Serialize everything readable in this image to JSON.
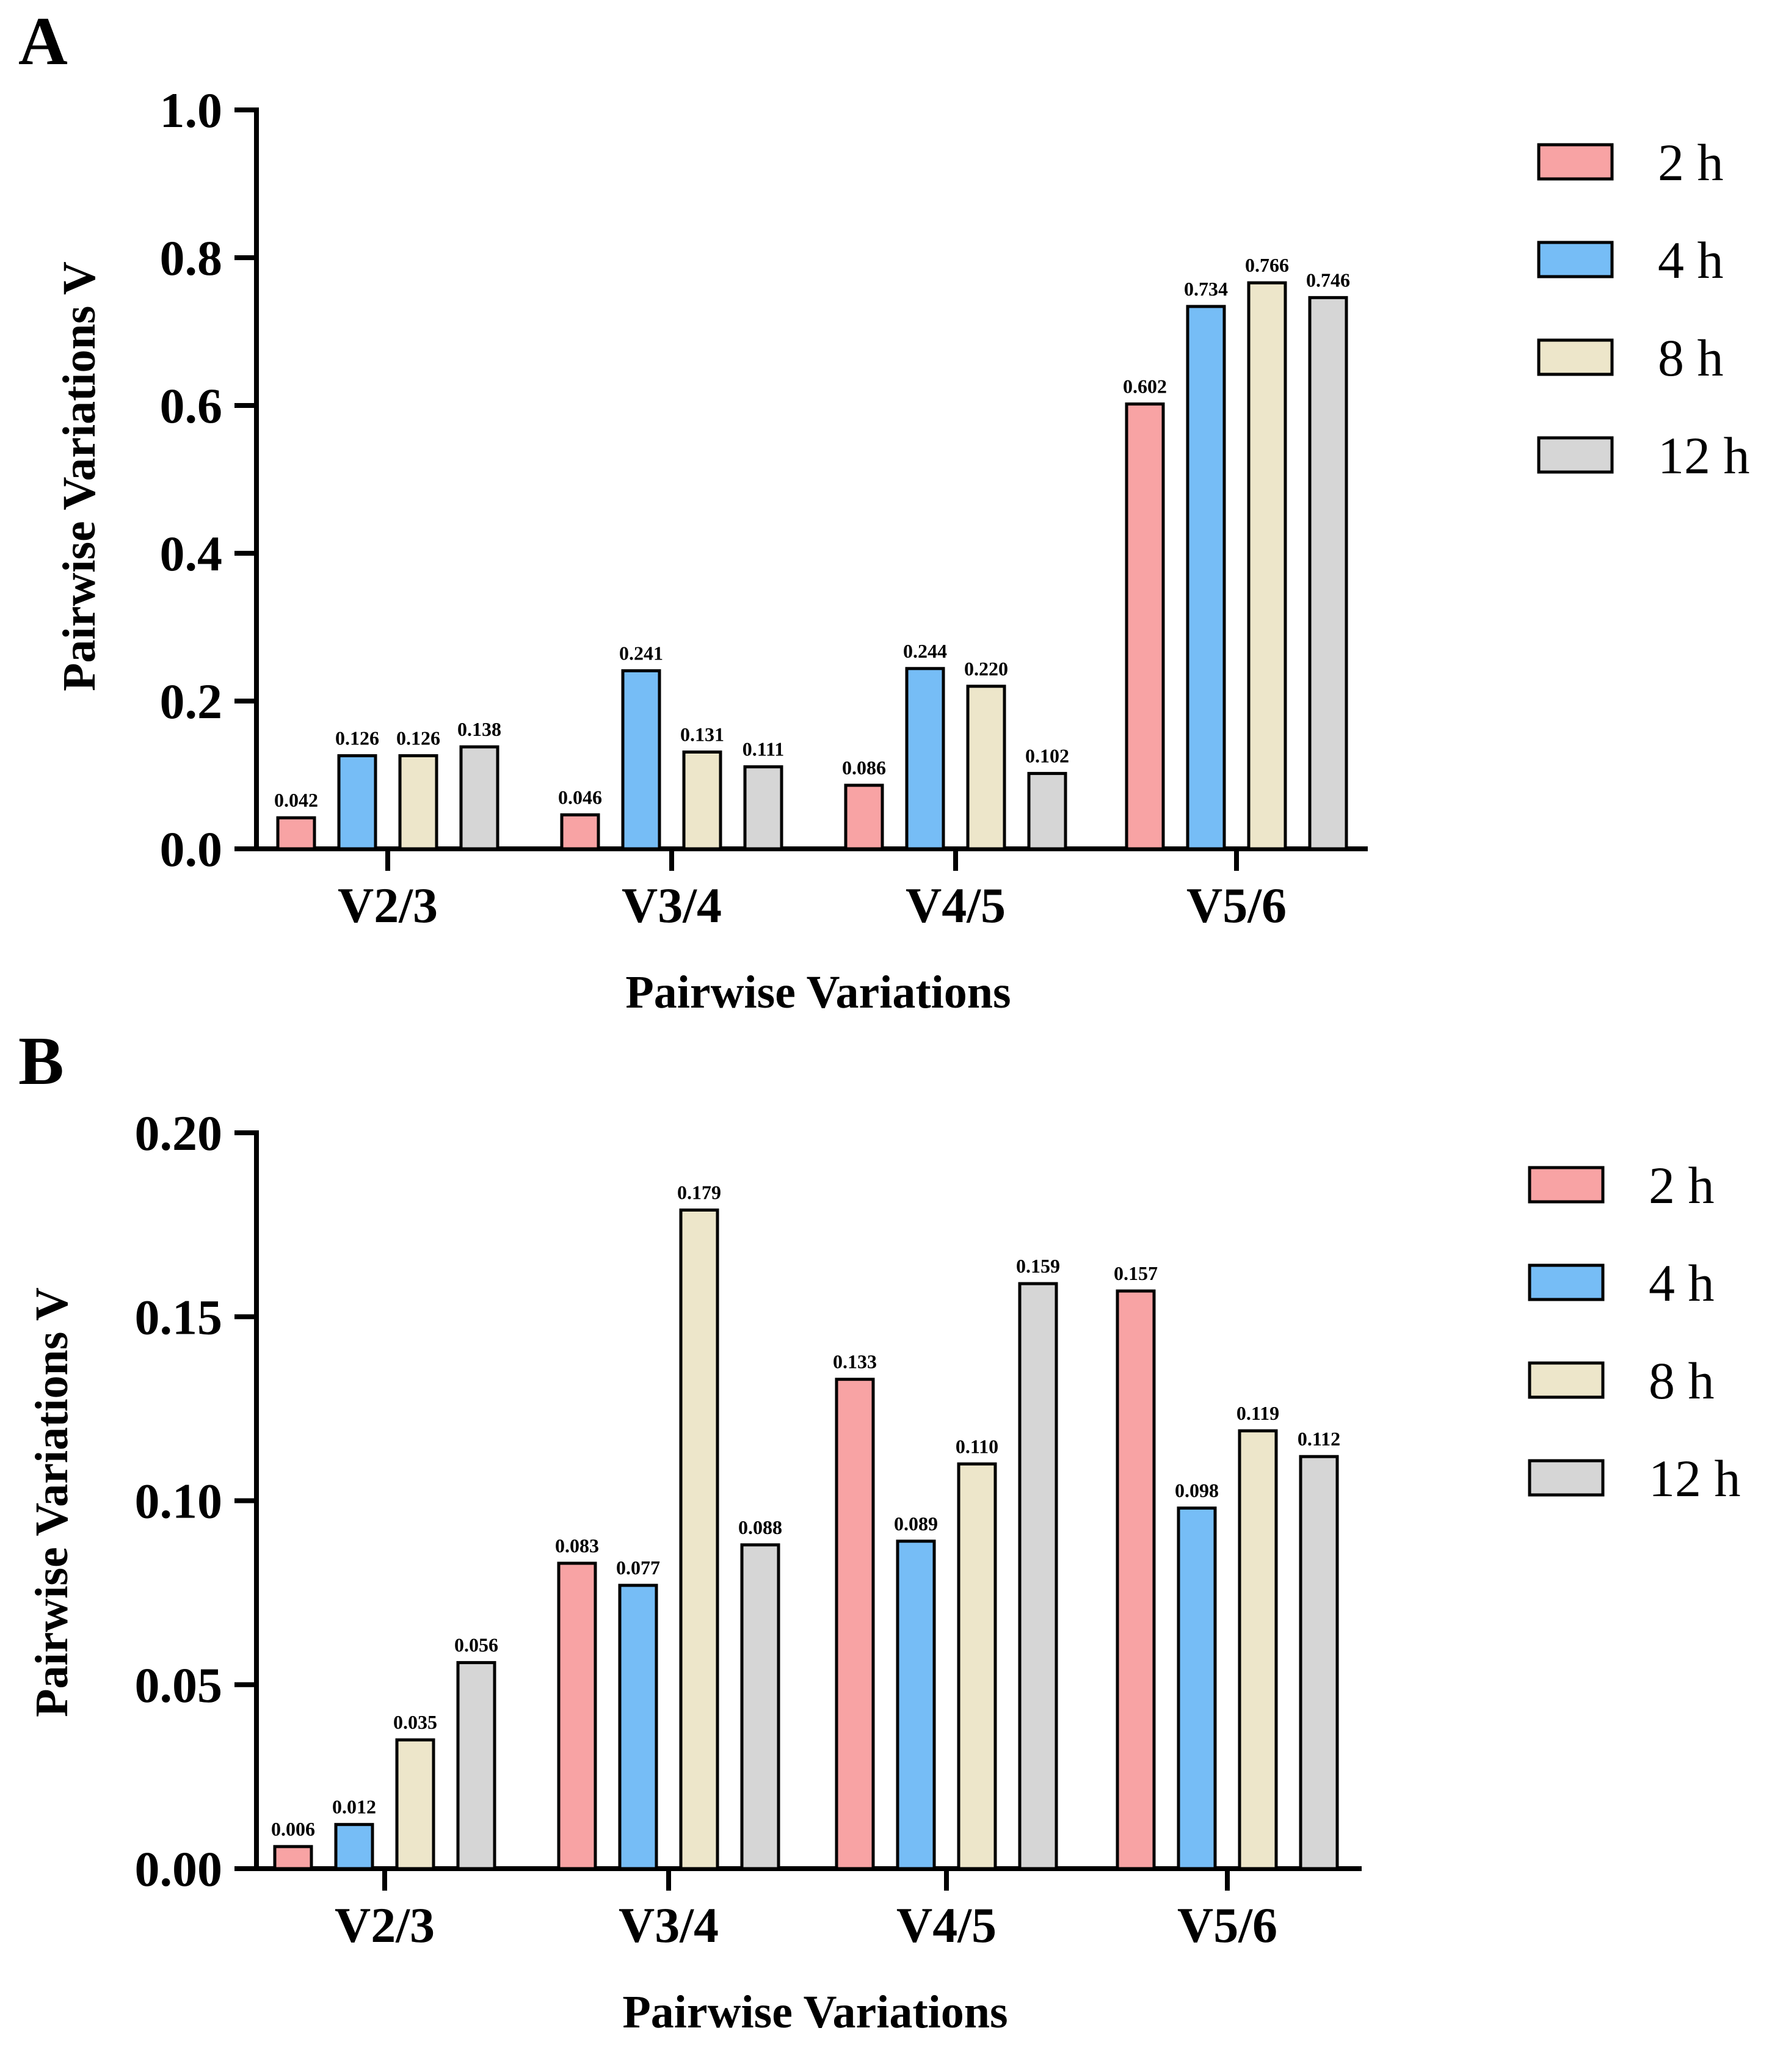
{
  "colors": {
    "2 h": "#F8A3A4",
    "4 h": "#76BDF6",
    "8 h": "#EDE6CA",
    "12 h": "#D6D6D6"
  },
  "chart_data": [
    {
      "panel_label": "A",
      "type": "bar",
      "categories": [
        "V2/3",
        "V3/4",
        "V4/5",
        "V5/6"
      ],
      "series": [
        {
          "name": "2 h",
          "values": [
            0.042,
            0.046,
            0.086,
            0.602
          ],
          "labels": [
            "0.042",
            "0.046",
            "0.086",
            "0.602"
          ]
        },
        {
          "name": "4 h",
          "values": [
            0.126,
            0.241,
            0.244,
            0.734
          ],
          "labels": [
            "0.126",
            "0.241",
            "0.244",
            "0.734"
          ]
        },
        {
          "name": "8 h",
          "values": [
            0.126,
            0.131,
            0.22,
            0.766
          ],
          "labels": [
            "0.126",
            "0.131",
            "0.220",
            "0.766"
          ]
        },
        {
          "name": "12 h",
          "values": [
            0.138,
            0.111,
            0.102,
            0.746
          ],
          "labels": [
            "0.138",
            "0.111",
            "0.102",
            "0.746"
          ]
        }
      ],
      "xlabel": "Pairwise Variations",
      "ylabel": "Pairwise Variations V",
      "ylim": [
        0,
        1.0
      ],
      "yticks": [
        0.0,
        0.2,
        0.4,
        0.6,
        0.8,
        1.0
      ],
      "ytick_labels": [
        "0.0",
        "0.2",
        "0.4",
        "0.6",
        "0.8",
        "1.0"
      ],
      "legend": [
        "2 h",
        "4 h",
        "8 h",
        "12 h"
      ],
      "legend_position": "top-right"
    },
    {
      "panel_label": "B",
      "type": "bar",
      "categories": [
        "V2/3",
        "V3/4",
        "V4/5",
        "V5/6"
      ],
      "series": [
        {
          "name": "2 h",
          "values": [
            0.006,
            0.083,
            0.133,
            0.157
          ],
          "labels": [
            "0.006",
            "0.083",
            "0.133",
            "0.157"
          ]
        },
        {
          "name": "4 h",
          "values": [
            0.012,
            0.077,
            0.089,
            0.098
          ],
          "labels": [
            "0.012",
            "0.077",
            "0.089",
            "0.098"
          ]
        },
        {
          "name": "8 h",
          "values": [
            0.035,
            0.179,
            0.11,
            0.119
          ],
          "labels": [
            "0.035",
            "0.179",
            "0.110",
            "0.119"
          ]
        },
        {
          "name": "12 h",
          "values": [
            0.056,
            0.088,
            0.159,
            0.112
          ],
          "labels": [
            "0.056",
            "0.088",
            "0.159",
            "0.112"
          ]
        }
      ],
      "xlabel": "Pairwise Variations",
      "ylabel": "Pairwise Variations V",
      "ylim": [
        0,
        0.2
      ],
      "yticks": [
        0.0,
        0.05,
        0.1,
        0.15,
        0.2
      ],
      "ytick_labels": [
        "0.00",
        "0.05",
        "0.10",
        "0.15",
        "0.20"
      ],
      "legend": [
        "2 h",
        "4 h",
        "8 h",
        "12 h"
      ],
      "legend_position": "top-right"
    }
  ]
}
